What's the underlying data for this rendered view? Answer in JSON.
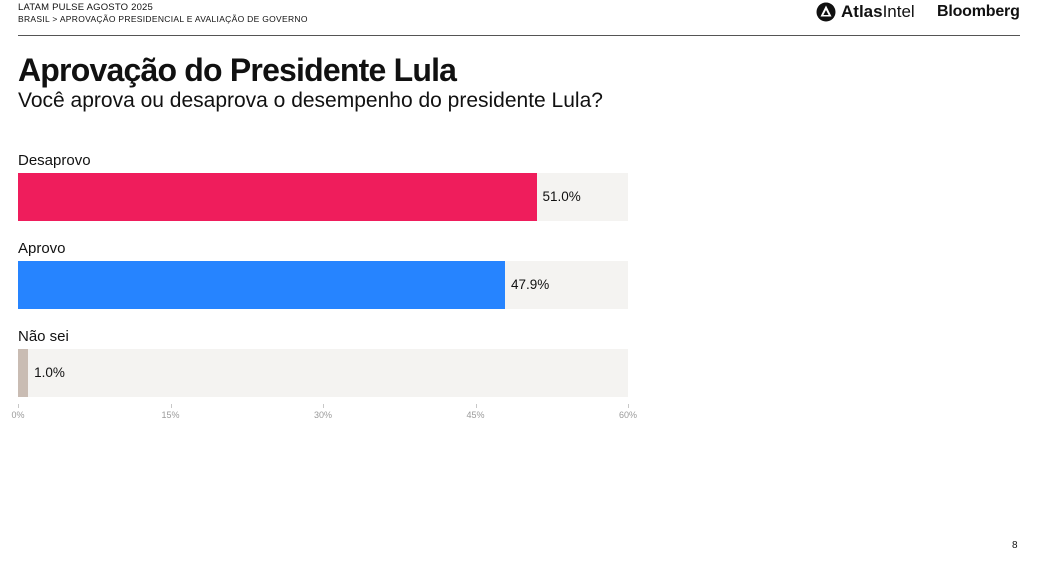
{
  "header": {
    "line1": "LATAM PULSE AGOSTO 2025",
    "line2": "BRASIL > APROVAÇÃO PRESIDENCIAL E AVALIAÇÃO DE GOVERNO",
    "atlas_bold": "Atlas",
    "atlas_light": "Intel",
    "bloomberg": "Bloomberg"
  },
  "title": "Aprovação do Presidente Lula",
  "subtitle": "Você aprova ou desaprova o desempenho do presidente Lula?",
  "page_number": "8",
  "colors": {
    "desaprovo": "#ef1d5c",
    "aprovo": "#2684ff",
    "nao_sei": "#c9bcb3",
    "track": "#f4f3f1"
  },
  "chart_data": {
    "type": "bar",
    "orientation": "horizontal",
    "categories": [
      "Desaprovo",
      "Aprovo",
      "Não sei"
    ],
    "values": [
      51.0,
      47.9,
      1.0
    ],
    "value_labels": [
      "51.0%",
      "47.9%",
      "1.0%"
    ],
    "xlim": [
      0,
      60
    ],
    "x_ticks": [
      "0%",
      "15%",
      "30%",
      "45%",
      "60%"
    ],
    "grid": false,
    "legend": "none"
  }
}
